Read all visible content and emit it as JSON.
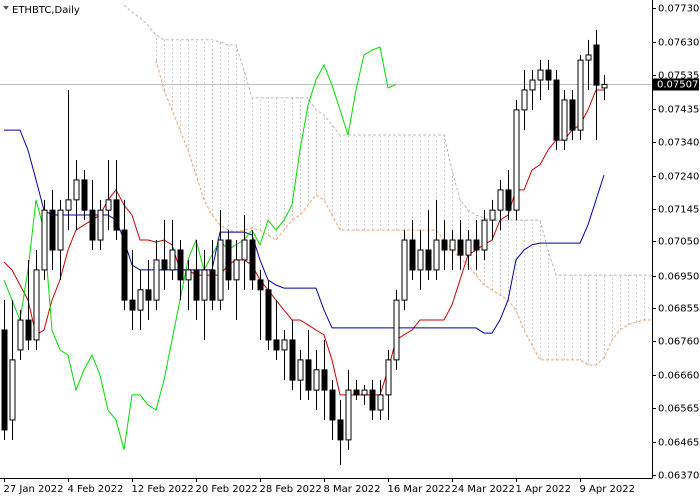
{
  "chart_data": {
    "type": "candlestick",
    "title": "ETHBTC,Daily",
    "categories": [
      "27 Jan 2022",
      null,
      null,
      null,
      null,
      null,
      null,
      null,
      "4 Feb 2022",
      null,
      null,
      null,
      null,
      null,
      null,
      null,
      "12 Feb 2022",
      null,
      null,
      null,
      null,
      null,
      null,
      null,
      "20 Feb 2022",
      null,
      null,
      null,
      null,
      null,
      null,
      null,
      "28 Feb 2022",
      null,
      null,
      null,
      null,
      null,
      null,
      null,
      "8 Mar 2022",
      null,
      null,
      null,
      null,
      null,
      null,
      null,
      "16 Mar 2022",
      null,
      null,
      null,
      null,
      null,
      null,
      null,
      "24 Mar 2022",
      null,
      null,
      null,
      null,
      null,
      null,
      null,
      "1 Apr 2022",
      null,
      null,
      null,
      null,
      null,
      null,
      null,
      "9 Apr 2022",
      null,
      null,
      null,
      null,
      null,
      null,
      null,
      null,
      null
    ],
    "open": [
      0.06792,
      0.0653,
      0.06734,
      0.06821,
      0.06763,
      0.06967,
      0.07141,
      0.07025,
      0.07141,
      0.07171,
      0.07229,
      0.07141,
      0.07054,
      0.07141,
      0.07171,
      0.07083,
      0.06879,
      0.0685,
      0.06909,
      0.06879,
      0.06996,
      0.06967,
      0.07025,
      0.06938,
      0.06967,
      0.06879,
      0.06967,
      0.06879,
      0.07054,
      0.06938,
      0.06996,
      0.07054,
      0.06938,
      0.06909,
      0.06763,
      0.06734,
      0.06763,
      0.06646,
      0.06705,
      0.06617,
      0.06676,
      0.06617,
      0.0653,
      0.06472,
      0.06617,
      0.06603,
      0.06617,
      0.06559,
      0.06603,
      0.06705,
      0.06879,
      0.07054,
      0.06967,
      0.07025,
      0.06967,
      0.07054,
      0.07025,
      0.07054,
      0.0701,
      0.07054,
      0.07025,
      0.07112,
      0.07141,
      0.072,
      0.07141,
      0.07433,
      0.07491,
      0.0752,
      0.07549,
      0.0752,
      0.07345,
      0.07462,
      0.07374,
      0.07578,
      0.07622,
      0.07497,
      null,
      null,
      null,
      null,
      null,
      null
    ],
    "high": [
      0.06879,
      0.06879,
      0.0685,
      0.06996,
      0.07025,
      0.07171,
      0.072,
      0.07171,
      0.07491,
      0.07287,
      0.07258,
      0.07229,
      0.07171,
      0.07287,
      0.07287,
      0.07171,
      0.07025,
      0.06967,
      0.06996,
      0.07054,
      0.07112,
      0.07112,
      0.07054,
      0.06996,
      0.07054,
      0.07025,
      0.07054,
      0.07141,
      0.07083,
      0.07054,
      0.07127,
      0.07083,
      0.06967,
      0.06938,
      0.06879,
      0.06792,
      0.06821,
      0.06734,
      0.06792,
      0.06734,
      0.06763,
      0.06646,
      0.06588,
      0.06676,
      0.06646,
      0.06632,
      0.06646,
      0.06646,
      0.06734,
      0.06909,
      0.07083,
      0.07112,
      0.07083,
      0.07141,
      0.07171,
      0.07112,
      0.07083,
      0.07112,
      0.07083,
      0.07112,
      0.07141,
      0.07171,
      0.07229,
      0.07258,
      0.07462,
      0.07549,
      0.07549,
      0.07578,
      0.07578,
      0.07549,
      0.07491,
      0.07491,
      0.07593,
      0.07637,
      0.07666,
      0.07535,
      null,
      null,
      null,
      null,
      null,
      null
    ],
    "low": [
      0.06472,
      0.06472,
      0.06705,
      0.06734,
      0.06734,
      0.06938,
      0.06967,
      0.06938,
      0.07083,
      0.07083,
      0.07112,
      0.07025,
      0.07025,
      0.07083,
      0.07054,
      0.0685,
      0.06792,
      0.06792,
      0.06821,
      0.0685,
      0.06909,
      0.06938,
      0.06879,
      0.0685,
      0.06821,
      0.06763,
      0.0685,
      0.0685,
      0.06909,
      0.06821,
      0.06909,
      0.06909,
      0.06763,
      0.06734,
      0.06705,
      0.06646,
      0.06617,
      0.06588,
      0.06588,
      0.06559,
      0.0653,
      0.06472,
      0.06399,
      0.06443,
      0.06588,
      0.06574,
      0.0653,
      0.0653,
      0.0653,
      0.06676,
      0.0685,
      0.06938,
      0.06909,
      0.06938,
      0.06938,
      0.06967,
      0.06967,
      0.06967,
      0.06967,
      0.06967,
      0.06996,
      0.07054,
      0.07083,
      0.07112,
      0.07112,
      0.07374,
      0.07433,
      0.07462,
      0.07491,
      0.07316,
      0.07316,
      0.07345,
      0.07345,
      0.07491,
      0.07345,
      0.07462,
      null,
      null,
      null,
      null,
      null,
      null
    ],
    "close": [
      0.06501,
      0.06705,
      0.06821,
      0.06763,
      0.06967,
      0.07141,
      0.07025,
      0.07141,
      0.07171,
      0.07229,
      0.07141,
      0.07054,
      0.07141,
      0.07171,
      0.07083,
      0.06879,
      0.0685,
      0.06909,
      0.06879,
      0.06996,
      0.06967,
      0.07025,
      0.06938,
      0.06967,
      0.06879,
      0.06967,
      0.06879,
      0.07054,
      0.06938,
      0.06996,
      0.07054,
      0.06938,
      0.06909,
      0.06763,
      0.06734,
      0.06763,
      0.06646,
      0.06705,
      0.06617,
      0.06676,
      0.06617,
      0.0653,
      0.06472,
      0.06617,
      0.06603,
      0.06617,
      0.06559,
      0.06603,
      0.06705,
      0.06879,
      0.07054,
      0.06967,
      0.07025,
      0.06967,
      0.07054,
      0.07025,
      0.07054,
      0.0701,
      0.07054,
      0.07025,
      0.07112,
      0.07141,
      0.072,
      0.07141,
      0.07433,
      0.07491,
      0.0752,
      0.07549,
      0.0752,
      0.07345,
      0.07462,
      0.07374,
      0.07578,
      0.07593,
      0.07505,
      0.07507,
      null,
      null,
      null,
      null,
      null,
      null
    ],
    "up_color": "#ffffff",
    "down_color": "#000000",
    "lines": [
      {
        "color": "#cc0000",
        "values": [
          0.0699,
          0.06967,
          0.06923,
          0.06879,
          0.06778,
          0.06792,
          0.06879,
          0.06938,
          0.07025,
          0.07083,
          0.07098,
          0.07112,
          0.07127,
          0.07171,
          0.072,
          0.07156,
          0.07127,
          0.07054,
          0.07054,
          0.07048,
          0.07054,
          0.0704,
          0.06967,
          0.06967,
          0.06952,
          0.06952,
          0.06952,
          0.06952,
          0.06981,
          0.06996,
          0.06996,
          0.06981,
          0.06938,
          0.06909,
          0.06879,
          0.0685,
          0.06821,
          0.06821,
          0.06807,
          0.06792,
          0.06778,
          0.06705,
          0.06603,
          0.06603,
          0.06603,
          0.06603,
          0.06603,
          0.06603,
          0.06676,
          0.06763,
          0.06778,
          0.06792,
          0.06821,
          0.06821,
          0.06821,
          0.06821,
          0.06865,
          0.06938,
          0.0701,
          0.07025,
          0.0704,
          0.07054,
          0.07112,
          0.07127,
          0.072,
          0.072,
          0.07258,
          0.07273,
          0.07316,
          0.07345,
          0.07345,
          0.07374,
          0.07389,
          0.07433,
          0.07491,
          0.07491,
          null,
          null,
          null,
          null,
          null,
          null
        ]
      },
      {
        "color": "#0000aa",
        "values": [
          0.07374,
          0.07374,
          0.07374,
          0.07316,
          0.07229,
          0.07141,
          0.07127,
          0.07127,
          0.07127,
          0.07127,
          0.07127,
          0.07127,
          0.07127,
          0.07127,
          0.07112,
          0.07054,
          0.06981,
          0.06967,
          0.06967,
          0.06967,
          0.06967,
          0.06967,
          0.06967,
          0.06967,
          0.06967,
          0.06967,
          0.06967,
          0.07077,
          0.07077,
          0.07077,
          0.07077,
          0.07069,
          0.06996,
          0.06938,
          0.06923,
          0.06914,
          0.06914,
          0.06914,
          0.06914,
          0.06914,
          0.0685,
          0.06798,
          0.06798,
          0.06798,
          0.06798,
          0.06798,
          0.06798,
          0.06798,
          0.06798,
          0.06798,
          0.06798,
          0.06798,
          0.06798,
          0.06798,
          0.06798,
          0.06798,
          0.06798,
          0.06798,
          0.06798,
          0.06798,
          0.06783,
          0.06783,
          0.06821,
          0.06879,
          0.06996,
          0.07025,
          0.0704,
          0.07045,
          0.07045,
          0.07045,
          0.07045,
          0.07045,
          0.07045,
          0.07098,
          0.07171,
          0.07243,
          null,
          null,
          null,
          null,
          null,
          null
        ]
      },
      {
        "color": "#00dd00",
        "values": [
          0.06938,
          0.06879,
          0.06821,
          0.06967,
          0.07171,
          0.07083,
          0.06792,
          0.06734,
          0.06719,
          0.06617,
          0.06676,
          0.06719,
          0.06661,
          0.06559,
          0.0653,
          0.06443,
          0.06603,
          0.06603,
          0.06574,
          0.06559,
          0.06646,
          0.06763,
          0.06879,
          0.06996,
          0.07054,
          0.06967,
          0.0701,
          0.07054,
          0.07025,
          0.0704,
          0.07054,
          0.07083,
          0.0704,
          0.07112,
          0.07083,
          0.07112,
          0.07156,
          0.07316,
          0.07447,
          0.0752,
          0.07564,
          0.07505,
          0.07433,
          0.0736,
          0.07491,
          0.07593,
          0.07607,
          0.07616,
          0.07497,
          0.07507,
          null,
          null,
          null,
          null,
          null,
          null,
          null,
          null,
          null,
          null,
          null,
          null,
          null,
          null,
          null,
          null,
          null,
          null,
          null,
          null,
          null,
          null,
          null,
          null,
          null,
          null,
          null,
          null,
          null,
          null,
          null,
          null
        ]
      }
    ],
    "cloud": [
      {
        "color": "#f0a070",
        "hatch_color": "#f2c8a8",
        "values": [
          null,
          null,
          null,
          null,
          null,
          null,
          null,
          null,
          null,
          null,
          null,
          null,
          null,
          null,
          null,
          null,
          null,
          null,
          null,
          0.07578,
          0.07491,
          0.07433,
          0.07374,
          0.07316,
          0.07243,
          0.07171,
          0.07127,
          0.07098,
          0.07083,
          0.07077,
          0.07083,
          0.07089,
          0.07083,
          0.07069,
          0.07054,
          0.07083,
          0.07112,
          0.07127,
          0.07156,
          0.07185,
          0.07171,
          0.07127,
          0.07083,
          0.07083,
          0.07083,
          0.07083,
          0.07083,
          0.07083,
          0.07083,
          0.07083,
          0.07083,
          0.07083,
          0.07083,
          0.07083,
          0.07083,
          0.07054,
          0.07025,
          0.07002,
          0.06981,
          0.06952,
          0.06923,
          0.06909,
          0.06894,
          0.06879,
          0.0685,
          0.06792,
          0.06748,
          0.06705,
          0.06705,
          0.06705,
          0.06705,
          0.06705,
          0.06705,
          0.0669,
          0.0669,
          0.06711,
          0.06763,
          0.06792,
          0.06807,
          0.06815,
          0.06821,
          0.06821
        ]
      },
      {
        "color": "#b8b8b8",
        "hatch_color": "#cccccc",
        "values": [
          null,
          null,
          null,
          null,
          null,
          null,
          null,
          null,
          null,
          null,
          null,
          null,
          null,
          null,
          null,
          0.07738,
          0.07718,
          0.07701,
          0.0768,
          0.07651,
          0.07637,
          0.07637,
          0.07637,
          0.07637,
          0.07637,
          0.07637,
          0.07637,
          0.07631,
          0.07622,
          0.07622,
          0.07549,
          0.07468,
          0.07468,
          0.07468,
          0.07468,
          0.07468,
          0.07468,
          0.07468,
          0.07468,
          0.07433,
          0.07418,
          0.07389,
          0.0736,
          0.0736,
          0.0736,
          0.0736,
          0.0736,
          0.0736,
          0.0736,
          0.0736,
          0.0736,
          0.0736,
          0.0736,
          0.0736,
          0.0736,
          0.0736,
          0.07258,
          0.07171,
          0.07141,
          0.07127,
          0.07118,
          0.07112,
          0.07112,
          0.07112,
          0.07112,
          0.07112,
          0.07112,
          0.07112,
          0.07025,
          0.06952,
          0.06952,
          0.06952,
          0.06952,
          0.06952,
          0.06952,
          0.06952,
          0.06952,
          0.06952,
          0.06952,
          0.06952,
          0.06952,
          0.06952
        ]
      }
    ],
    "last_price": 0.07507,
    "price_line_color": "#c0c0c0",
    "ylim": [
      0.06361,
      0.07753
    ],
    "yticks": [
      {
        "value": 0.0773,
        "label": "0.07730"
      },
      {
        "value": 0.0763,
        "label": "0.07630"
      },
      0.07535,
      0.07435,
      {
        "value": 0.0734,
        "label": "0.07340"
      },
      {
        "value": 0.0724,
        "label": "0.07240"
      },
      0.07145,
      {
        "value": 0.0705,
        "label": "0.07050"
      },
      {
        "value": 0.0695,
        "label": "0.06950"
      },
      0.06855,
      {
        "value": 0.0676,
        "label": "0.06760"
      },
      {
        "value": 0.0666,
        "label": "0.06660"
      },
      0.06565,
      0.06465,
      {
        "value": 0.0637,
        "label": "0.06370"
      }
    ]
  }
}
